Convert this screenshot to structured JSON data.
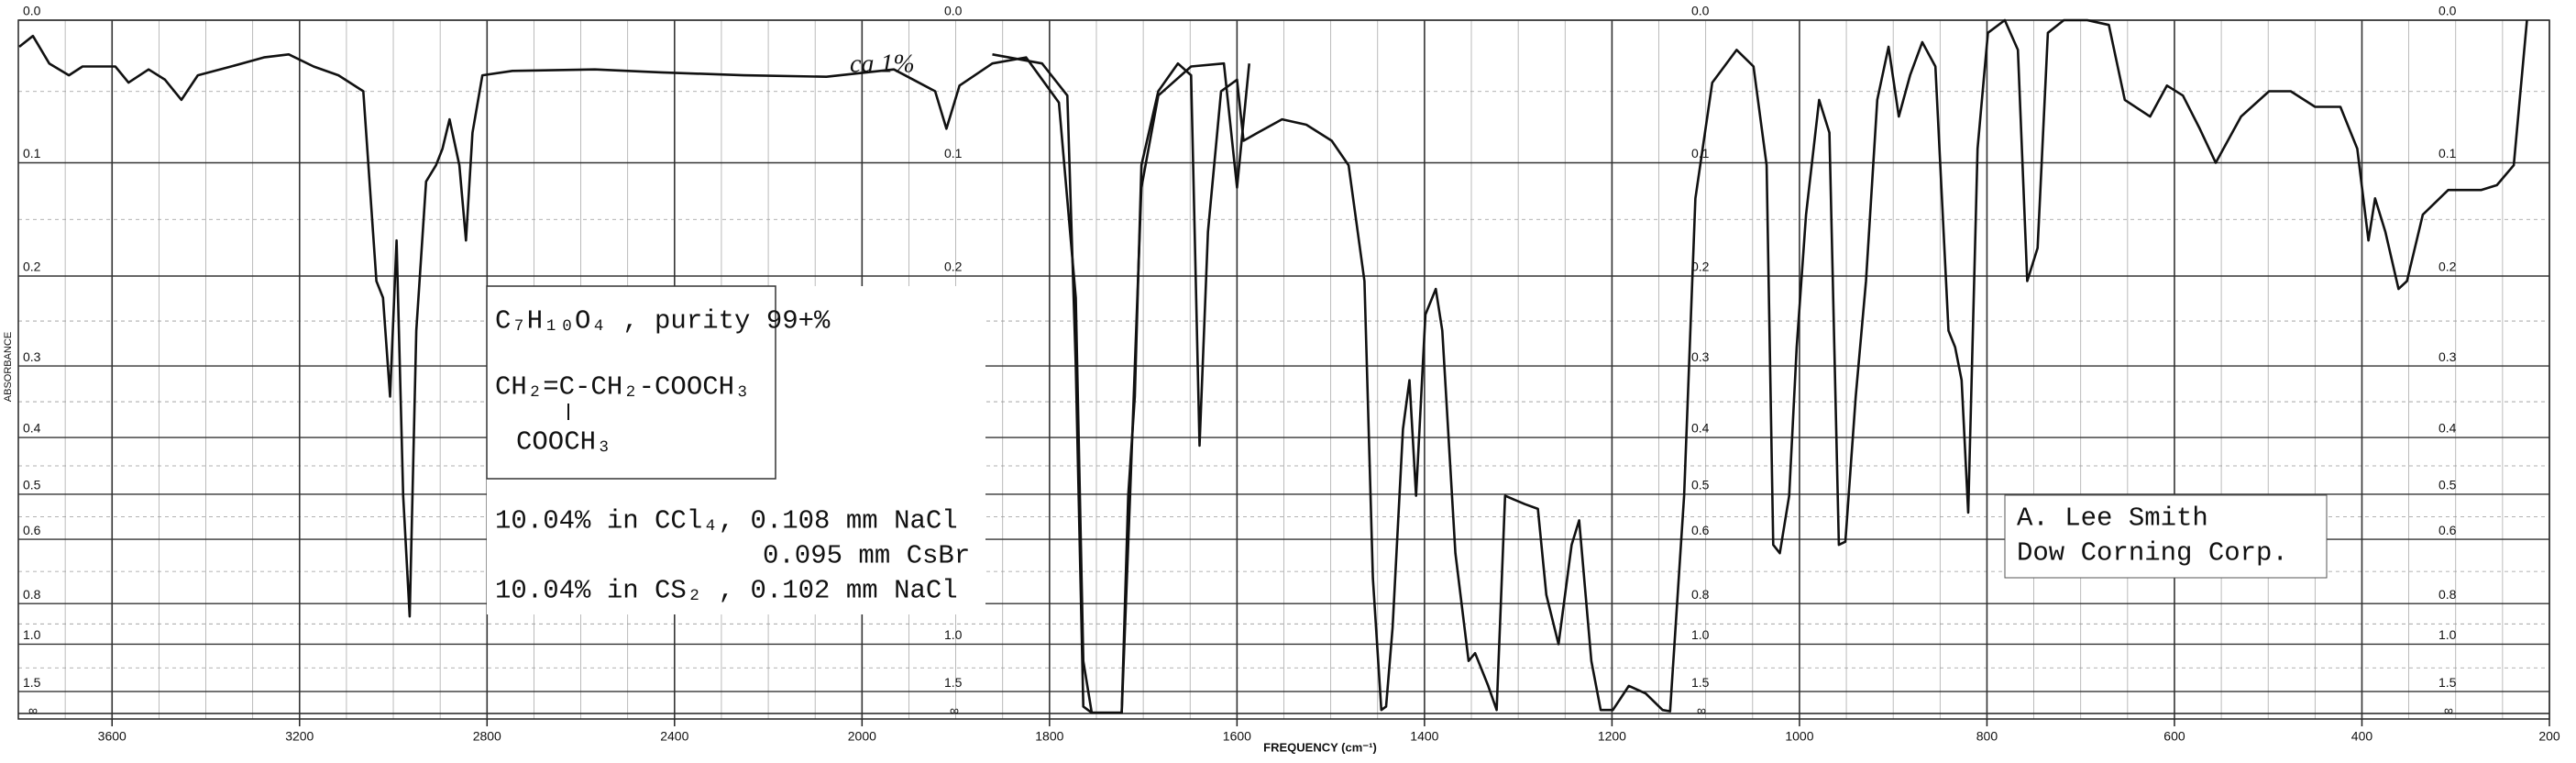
{
  "chart_data": {
    "type": "line",
    "yscale": "absorbance",
    "y_label": "ABSORBANCE",
    "x_label": "FREQUENCY (cm⁻¹)",
    "y_bottom_label": "∞",
    "xlim": [
      3800,
      200
    ],
    "xticks": [
      3600,
      3200,
      2800,
      2400,
      2000,
      1800,
      1600,
      1400,
      1200,
      1000,
      800,
      600,
      400,
      200
    ],
    "yticks": [
      {
        "value": 0,
        "label": "0.0"
      },
      0.1,
      0.2,
      0.3,
      0.4,
      0.5,
      0.6,
      0.8,
      {
        "value": 1,
        "label": "1.0"
      },
      1.5
    ],
    "grid": true,
    "annotations": [
      "ca 1%",
      "C₇H₁₀O₄ , purity 99+%",
      "CH₂=C-CH₂-COOCH₃",
      "COOCH₃",
      "10.04% in CCl₄, 0.108 mm NaCl",
      "0.095 mm CsBr",
      "10.04% in CS₂ , 0.102 mm NaCl",
      "A. Lee Smith",
      "Dow Corning Corp."
    ],
    "series": [
      {
        "color": "#111111",
        "x": [
          3798,
          3769,
          3734,
          3692,
          3663,
          3593,
          3565,
          3522,
          3487,
          3452,
          3417,
          3346,
          3276,
          3223,
          3170,
          3117,
          3064,
          3036,
          3022,
          3007,
          2993,
          2979,
          2965,
          2951,
          2930,
          2909,
          2895,
          2880,
          2859,
          2845,
          2831,
          2810,
          2746,
          2570,
          2429,
          2253,
          2076,
          1966,
          1922,
          1910,
          1896,
          1861,
          1825,
          1790,
          1772,
          1764,
          1755,
          1723,
          1716,
          1709,
          1702,
          1684,
          1663,
          1649,
          1640,
          1631,
          1617,
          1600,
          1593,
          1578,
          1552,
          1526,
          1499,
          1481,
          1464,
          1455,
          1446,
          1441,
          1434,
          1423,
          1416,
          1409,
          1399,
          1388,
          1381,
          1367,
          1353,
          1346,
          1332,
          1323,
          1314,
          1293,
          1279,
          1270,
          1257,
          1243,
          1235,
          1222,
          1212,
          1199,
          1182,
          1164,
          1146,
          1138,
          1123,
          1111,
          1093,
          1067,
          1049,
          1035,
          1028,
          1021,
          1011,
          1003,
          993,
          979,
          968,
          958,
          951,
          940,
          929,
          917,
          905,
          894,
          882,
          869,
          855,
          841,
          834,
          827,
          820,
          810,
          799,
          781,
          767,
          757,
          746,
          735,
          718,
          693,
          670,
          653,
          626,
          608,
          591,
          573,
          556,
          529,
          499,
          476,
          450,
          423,
          405,
          393,
          386,
          375,
          361,
          352,
          335,
          308,
          273,
          256,
          238,
          224
        ],
        "values": [
          0.017,
          0.01,
          0.028,
          0.036,
          0.03,
          0.03,
          0.041,
          0.032,
          0.039,
          0.053,
          0.036,
          0.03,
          0.024,
          0.022,
          0.03,
          0.036,
          0.047,
          0.205,
          0.222,
          0.34,
          0.166,
          0.503,
          0.854,
          0.258,
          0.115,
          0.102,
          0.089,
          0.067,
          0.102,
          0.166,
          0.077,
          0.036,
          0.033,
          0.032,
          0.034,
          0.036,
          0.037,
          0.032,
          0.047,
          0.074,
          0.043,
          0.028,
          0.024,
          0.055,
          0.222,
          1.12,
          3,
          3,
          0.503,
          0.34,
          0.102,
          0.047,
          0.028,
          0.036,
          0.413,
          0.158,
          0.047,
          0.039,
          0.083,
          0.077,
          0.067,
          0.071,
          0.083,
          0.102,
          0.205,
          0.71,
          2.3,
          2.0,
          0.907,
          0.387,
          0.318,
          0.503,
          0.24,
          0.213,
          0.258,
          0.636,
          1.12,
          1.06,
          1.4,
          2.3,
          0.503,
          0.52,
          0.53,
          0.767,
          1.0,
          0.614,
          0.555,
          1.12,
          2.3,
          2.3,
          1.4,
          1.54,
          2.3,
          2.5,
          0.503,
          0.129,
          0.041,
          0.019,
          0.03,
          0.102,
          0.614,
          0.636,
          0.503,
          0.277,
          0.143,
          0.053,
          0.077,
          0.614,
          0.606,
          0.34,
          0.205,
          0.053,
          0.017,
          0.065,
          0.036,
          0.014,
          0.03,
          0.258,
          0.277,
          0.318,
          0.538,
          0.089,
          0.008,
          0,
          0.019,
          0.205,
          0.173,
          0.008,
          0,
          0,
          0.003,
          0.053,
          0.065,
          0.043,
          0.05,
          0.074,
          0.1,
          0.065,
          0.047,
          0.047,
          0.058,
          0.058,
          0.089,
          0.166,
          0.129,
          0.158,
          0.213,
          0.205,
          0.143,
          0.122,
          0.122,
          0.118,
          0.102,
          0
        ]
      },
      {
        "color": "#111111",
        "x": [
          1861,
          1808,
          1781,
          1772,
          1764,
          1755,
          1723,
          1714,
          1702,
          1684,
          1649,
          1614,
          1600,
          1587
        ],
        "values": [
          0.022,
          0.028,
          0.05,
          0.3,
          2.0,
          3,
          3,
          0.5,
          0.12,
          0.05,
          0.03,
          0.028,
          0.12,
          0.028
        ]
      }
    ]
  }
}
